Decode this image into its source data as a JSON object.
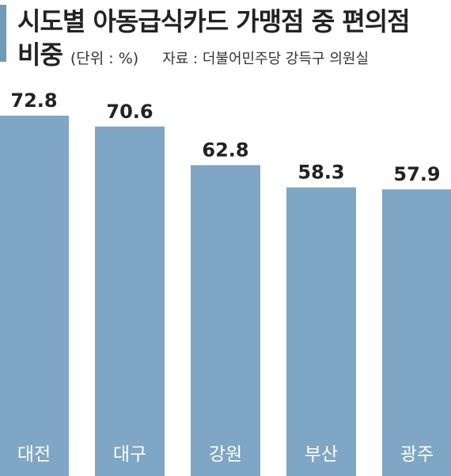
{
  "title": {
    "line1": "시도별 아동급식카드 가맹점 중 편의점",
    "line2": "비중",
    "unit": "(단위 : %)",
    "source": "자료 : 더불어민주당 강득구 의원실"
  },
  "colors": {
    "bar": "#7fa6c4",
    "accent": "#6f9ab8",
    "value_text": "#222222",
    "category_text": "#ffffff"
  },
  "chart_data": {
    "type": "bar",
    "title": "시도별 아동급식카드 가맹점 중 편의점 비중",
    "unit": "(단위 : %)",
    "categories": [
      "대전",
      "대구",
      "강원",
      "부산",
      "광주"
    ],
    "values": [
      72.8,
      70.6,
      62.8,
      58.3,
      57.9
    ],
    "value_labels": [
      "72.8",
      "70.6",
      "62.8",
      "58.3",
      "57.9"
    ],
    "xlabel": "",
    "ylabel": "",
    "grid": false,
    "legend": "none",
    "category_label_position": "inside-bottom"
  }
}
